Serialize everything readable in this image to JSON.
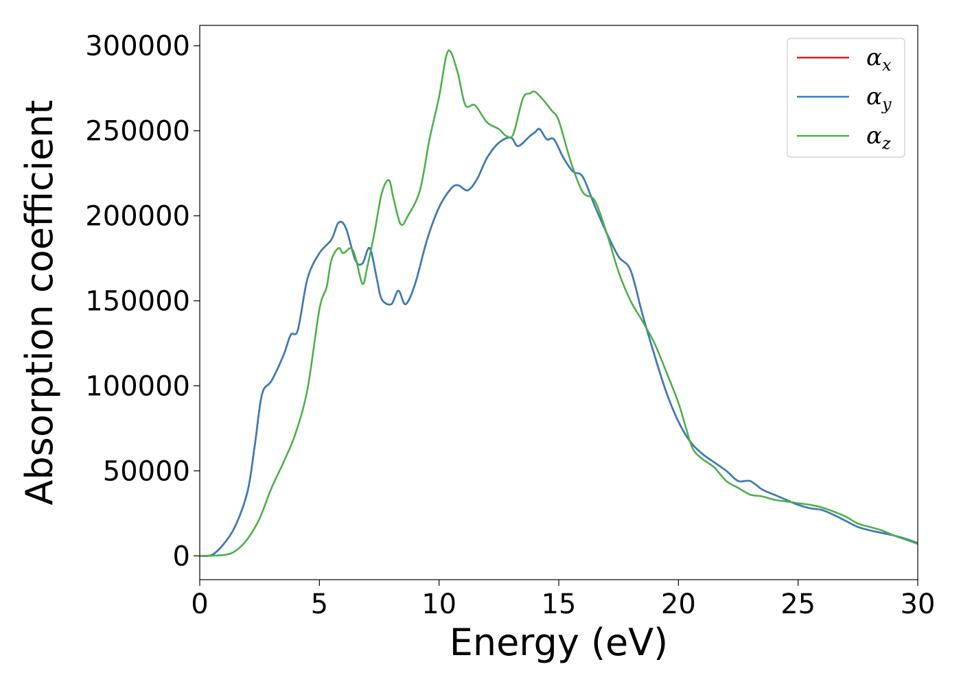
{
  "chart_data": {
    "type": "line",
    "xlabel": "Energy (eV)",
    "ylabel": "Absorption coefficient",
    "xlim": [
      0,
      30
    ],
    "ylim": [
      -14000,
      312000
    ],
    "x_ticks": [
      "0",
      "5",
      "10",
      "15",
      "20",
      "25",
      "30"
    ],
    "y_ticks": [
      "0",
      "50000",
      "100000",
      "150000",
      "200000",
      "250000",
      "300000"
    ],
    "grid": false,
    "legend_position": "top-right",
    "series": [
      {
        "name": "α",
        "sub": "x",
        "color": "#e41a1c",
        "points": [
          [
            0,
            0
          ],
          [
            0.5,
            500
          ],
          [
            1,
            7000
          ],
          [
            1.5,
            18000
          ],
          [
            2,
            38000
          ],
          [
            2.3,
            65000
          ],
          [
            2.6,
            95000
          ],
          [
            3,
            103000
          ],
          [
            3.5,
            118000
          ],
          [
            3.8,
            130000
          ],
          [
            4.1,
            133000
          ],
          [
            4.5,
            163000
          ],
          [
            5,
            178000
          ],
          [
            5.5,
            186000
          ],
          [
            5.8,
            196000
          ],
          [
            6.1,
            193000
          ],
          [
            6.5,
            174000
          ],
          [
            6.8,
            172000
          ],
          [
            7.1,
            181000
          ],
          [
            7.4,
            163000
          ],
          [
            7.6,
            151000
          ],
          [
            8,
            148000
          ],
          [
            8.3,
            156000
          ],
          [
            8.6,
            148000
          ],
          [
            9,
            160000
          ],
          [
            9.5,
            186000
          ],
          [
            10,
            205000
          ],
          [
            10.5,
            216000
          ],
          [
            10.8,
            218000
          ],
          [
            11.2,
            215000
          ],
          [
            11.6,
            222000
          ],
          [
            12,
            234000
          ],
          [
            12.5,
            243000
          ],
          [
            13,
            246000
          ],
          [
            13.3,
            241000
          ],
          [
            13.8,
            247000
          ],
          [
            14,
            249000
          ],
          [
            14.2,
            251000
          ],
          [
            14.5,
            245000
          ],
          [
            14.8,
            245000
          ],
          [
            15.2,
            234000
          ],
          [
            15.6,
            226000
          ],
          [
            16,
            223000
          ],
          [
            16.5,
            206000
          ],
          [
            17,
            190000
          ],
          [
            17.5,
            176000
          ],
          [
            18,
            168000
          ],
          [
            18.5,
            142000
          ],
          [
            19,
            118000
          ],
          [
            19.5,
            96000
          ],
          [
            20,
            79000
          ],
          [
            20.5,
            67000
          ],
          [
            21,
            60000
          ],
          [
            21.5,
            55000
          ],
          [
            22,
            50000
          ],
          [
            22.5,
            44000
          ],
          [
            23,
            44000
          ],
          [
            23.5,
            39000
          ],
          [
            24,
            36000
          ],
          [
            24.5,
            33000
          ],
          [
            25,
            30000
          ],
          [
            25.5,
            28000
          ],
          [
            26,
            27000
          ],
          [
            26.5,
            24000
          ],
          [
            27,
            20500
          ],
          [
            27.5,
            17000
          ],
          [
            28,
            15000
          ],
          [
            28.5,
            13500
          ],
          [
            29,
            12000
          ],
          [
            29.5,
            10000
          ],
          [
            30,
            7500
          ]
        ]
      },
      {
        "name": "α",
        "sub": "y",
        "color": "#377eb8",
        "points": [
          [
            0,
            0
          ],
          [
            0.5,
            500
          ],
          [
            1,
            7000
          ],
          [
            1.5,
            18000
          ],
          [
            2,
            38000
          ],
          [
            2.3,
            65000
          ],
          [
            2.6,
            95000
          ],
          [
            3,
            103000
          ],
          [
            3.5,
            118000
          ],
          [
            3.8,
            130000
          ],
          [
            4.1,
            133000
          ],
          [
            4.5,
            163000
          ],
          [
            5,
            178000
          ],
          [
            5.5,
            186000
          ],
          [
            5.8,
            196000
          ],
          [
            6.1,
            193000
          ],
          [
            6.5,
            174000
          ],
          [
            6.8,
            172000
          ],
          [
            7.1,
            181000
          ],
          [
            7.4,
            163000
          ],
          [
            7.6,
            151000
          ],
          [
            8,
            148000
          ],
          [
            8.3,
            156000
          ],
          [
            8.6,
            148000
          ],
          [
            9,
            160000
          ],
          [
            9.5,
            186000
          ],
          [
            10,
            205000
          ],
          [
            10.5,
            216000
          ],
          [
            10.8,
            218000
          ],
          [
            11.2,
            215000
          ],
          [
            11.6,
            222000
          ],
          [
            12,
            234000
          ],
          [
            12.5,
            243000
          ],
          [
            13,
            246000
          ],
          [
            13.3,
            241000
          ],
          [
            13.8,
            247000
          ],
          [
            14,
            249000
          ],
          [
            14.2,
            251000
          ],
          [
            14.5,
            245000
          ],
          [
            14.8,
            245000
          ],
          [
            15.2,
            234000
          ],
          [
            15.6,
            226000
          ],
          [
            16,
            223000
          ],
          [
            16.5,
            206000
          ],
          [
            17,
            190000
          ],
          [
            17.5,
            176000
          ],
          [
            18,
            168000
          ],
          [
            18.5,
            142000
          ],
          [
            19,
            118000
          ],
          [
            19.5,
            96000
          ],
          [
            20,
            79000
          ],
          [
            20.5,
            67000
          ],
          [
            21,
            60000
          ],
          [
            21.5,
            55000
          ],
          [
            22,
            50000
          ],
          [
            22.5,
            44000
          ],
          [
            23,
            44000
          ],
          [
            23.5,
            39000
          ],
          [
            24,
            36000
          ],
          [
            24.5,
            33000
          ],
          [
            25,
            30000
          ],
          [
            25.5,
            28000
          ],
          [
            26,
            27000
          ],
          [
            26.5,
            24000
          ],
          [
            27,
            20500
          ],
          [
            27.5,
            17000
          ],
          [
            28,
            15000
          ],
          [
            28.5,
            13500
          ],
          [
            29,
            12000
          ],
          [
            29.5,
            10000
          ],
          [
            30,
            7500
          ]
        ]
      },
      {
        "name": "α",
        "sub": "z",
        "color": "#4daf4a",
        "points": [
          [
            0,
            0
          ],
          [
            1,
            500
          ],
          [
            1.5,
            3000
          ],
          [
            2,
            10000
          ],
          [
            2.5,
            22000
          ],
          [
            3,
            40000
          ],
          [
            3.5,
            55000
          ],
          [
            4,
            72000
          ],
          [
            4.5,
            98000
          ],
          [
            5,
            145000
          ],
          [
            5.3,
            158000
          ],
          [
            5.5,
            174000
          ],
          [
            5.8,
            181000
          ],
          [
            6,
            178000
          ],
          [
            6.3,
            181000
          ],
          [
            6.5,
            176000
          ],
          [
            6.8,
            160000
          ],
          [
            7,
            170000
          ],
          [
            7.3,
            190000
          ],
          [
            7.6,
            213000
          ],
          [
            7.9,
            221000
          ],
          [
            8.1,
            210000
          ],
          [
            8.4,
            195000
          ],
          [
            8.7,
            200000
          ],
          [
            9.2,
            215000
          ],
          [
            9.6,
            245000
          ],
          [
            10,
            270000
          ],
          [
            10.3,
            294000
          ],
          [
            10.5,
            296000
          ],
          [
            10.8,
            283000
          ],
          [
            11.1,
            265000
          ],
          [
            11.5,
            265000
          ],
          [
            12,
            255000
          ],
          [
            12.5,
            251000
          ],
          [
            12.8,
            247000
          ],
          [
            13.1,
            248000
          ],
          [
            13.5,
            269000
          ],
          [
            13.8,
            272000
          ],
          [
            14,
            273000
          ],
          [
            14.3,
            269000
          ],
          [
            14.7,
            262000
          ],
          [
            15,
            256000
          ],
          [
            15.5,
            232000
          ],
          [
            16,
            214000
          ],
          [
            16.5,
            209000
          ],
          [
            17,
            190000
          ],
          [
            17.5,
            167000
          ],
          [
            18,
            150000
          ],
          [
            18.5,
            138000
          ],
          [
            19,
            125000
          ],
          [
            19.5,
            108000
          ],
          [
            20,
            90000
          ],
          [
            20.3,
            76000
          ],
          [
            20.6,
            63000
          ],
          [
            21,
            57000
          ],
          [
            21.5,
            52000
          ],
          [
            22,
            44000
          ],
          [
            22.5,
            40000
          ],
          [
            23,
            36000
          ],
          [
            23.5,
            35000
          ],
          [
            24,
            33000
          ],
          [
            24.5,
            32000
          ],
          [
            25,
            31000
          ],
          [
            25.5,
            30000
          ],
          [
            26,
            28500
          ],
          [
            26.5,
            26000
          ],
          [
            27,
            23000
          ],
          [
            27.5,
            19000
          ],
          [
            28,
            17000
          ],
          [
            28.5,
            15000
          ],
          [
            29,
            12000
          ],
          [
            29.5,
            9500
          ],
          [
            30,
            7000
          ]
        ]
      }
    ]
  }
}
